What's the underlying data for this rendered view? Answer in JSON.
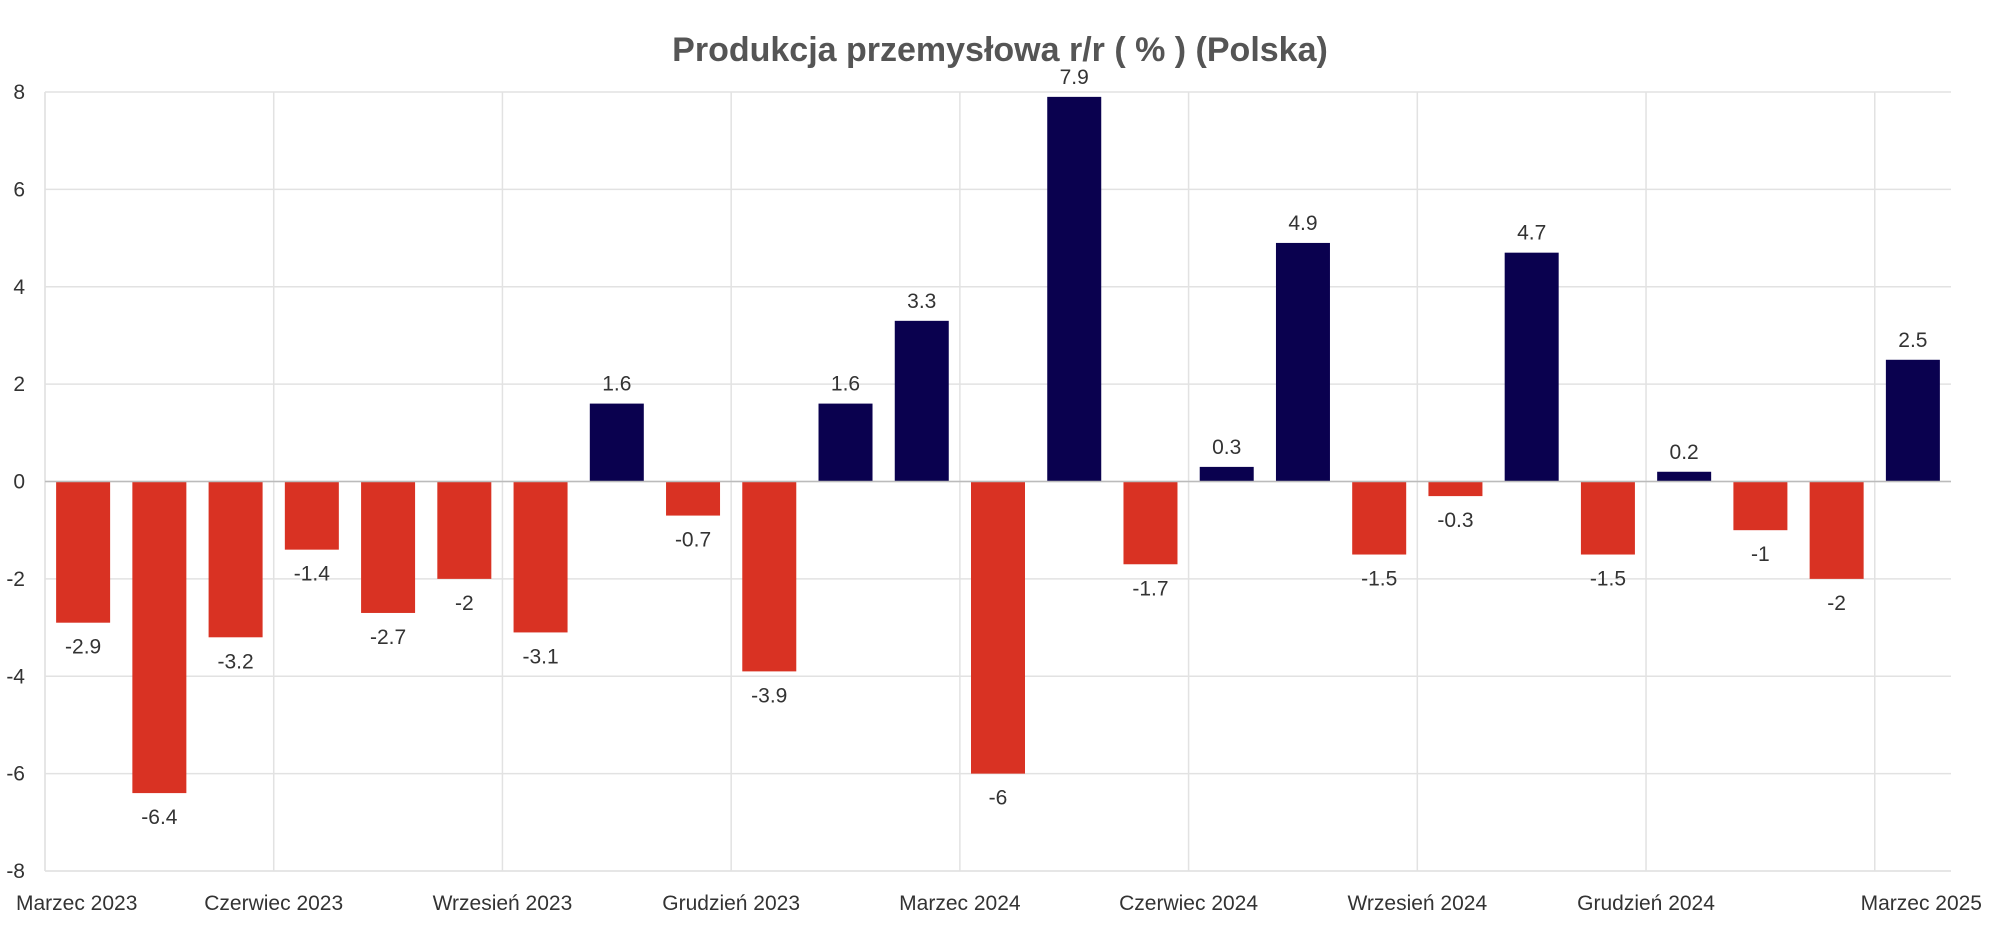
{
  "chart_data": {
    "type": "bar",
    "title": "Produkcja przemysłowa r/r ( % ) (Polska)",
    "xlabel": "",
    "ylabel": "",
    "ylim": [
      -8,
      8
    ],
    "yticks": [
      "8",
      "6",
      "4",
      "2",
      "0",
      "-2",
      "-4",
      "-6",
      "-8"
    ],
    "grid": true,
    "legend": "none",
    "x_tick_labels": [
      "Marzec 2023",
      "Czerwiec 2023",
      "Wrzesień 2023",
      "Grudzień 2023",
      "Marzec 2024",
      "Czerwiec 2024",
      "Wrzesień 2024",
      "Grudzień 2024",
      "Marzec 2025"
    ],
    "categories": [
      "2023-03",
      "2023-04",
      "2023-05",
      "2023-06",
      "2023-07",
      "2023-08",
      "2023-09",
      "2023-10",
      "2023-11",
      "2023-12",
      "2024-01",
      "2024-02",
      "2024-03",
      "2024-04",
      "2024-05",
      "2024-06",
      "2024-07",
      "2024-08",
      "2024-09",
      "2024-10",
      "2024-11",
      "2024-12",
      "2025-01",
      "2025-02",
      "2025-03"
    ],
    "values": [
      -2.9,
      -6.4,
      -3.2,
      -1.4,
      -2.7,
      -2,
      -3.1,
      1.6,
      -0.7,
      -3.9,
      1.6,
      3.3,
      -6,
      7.9,
      -1.7,
      0.3,
      4.9,
      -1.5,
      -0.3,
      4.7,
      -1.5,
      0.2,
      -1,
      -2,
      2.5
    ],
    "value_labels": [
      "-2.9",
      "-6.4",
      "-3.2",
      "-1.4",
      "-2.7",
      "-2",
      "-3.1",
      "1.6",
      "-0.7",
      "-3.9",
      "1.6",
      "3.3",
      "-6",
      "7.9",
      "-1.7",
      "0.3",
      "4.9",
      "-1.5",
      "-0.3",
      "4.7",
      "-1.5",
      "0.2",
      "-1",
      "-2",
      "2.5"
    ],
    "colors": {
      "positive": "#0a014f",
      "negative": "#d93223"
    }
  }
}
